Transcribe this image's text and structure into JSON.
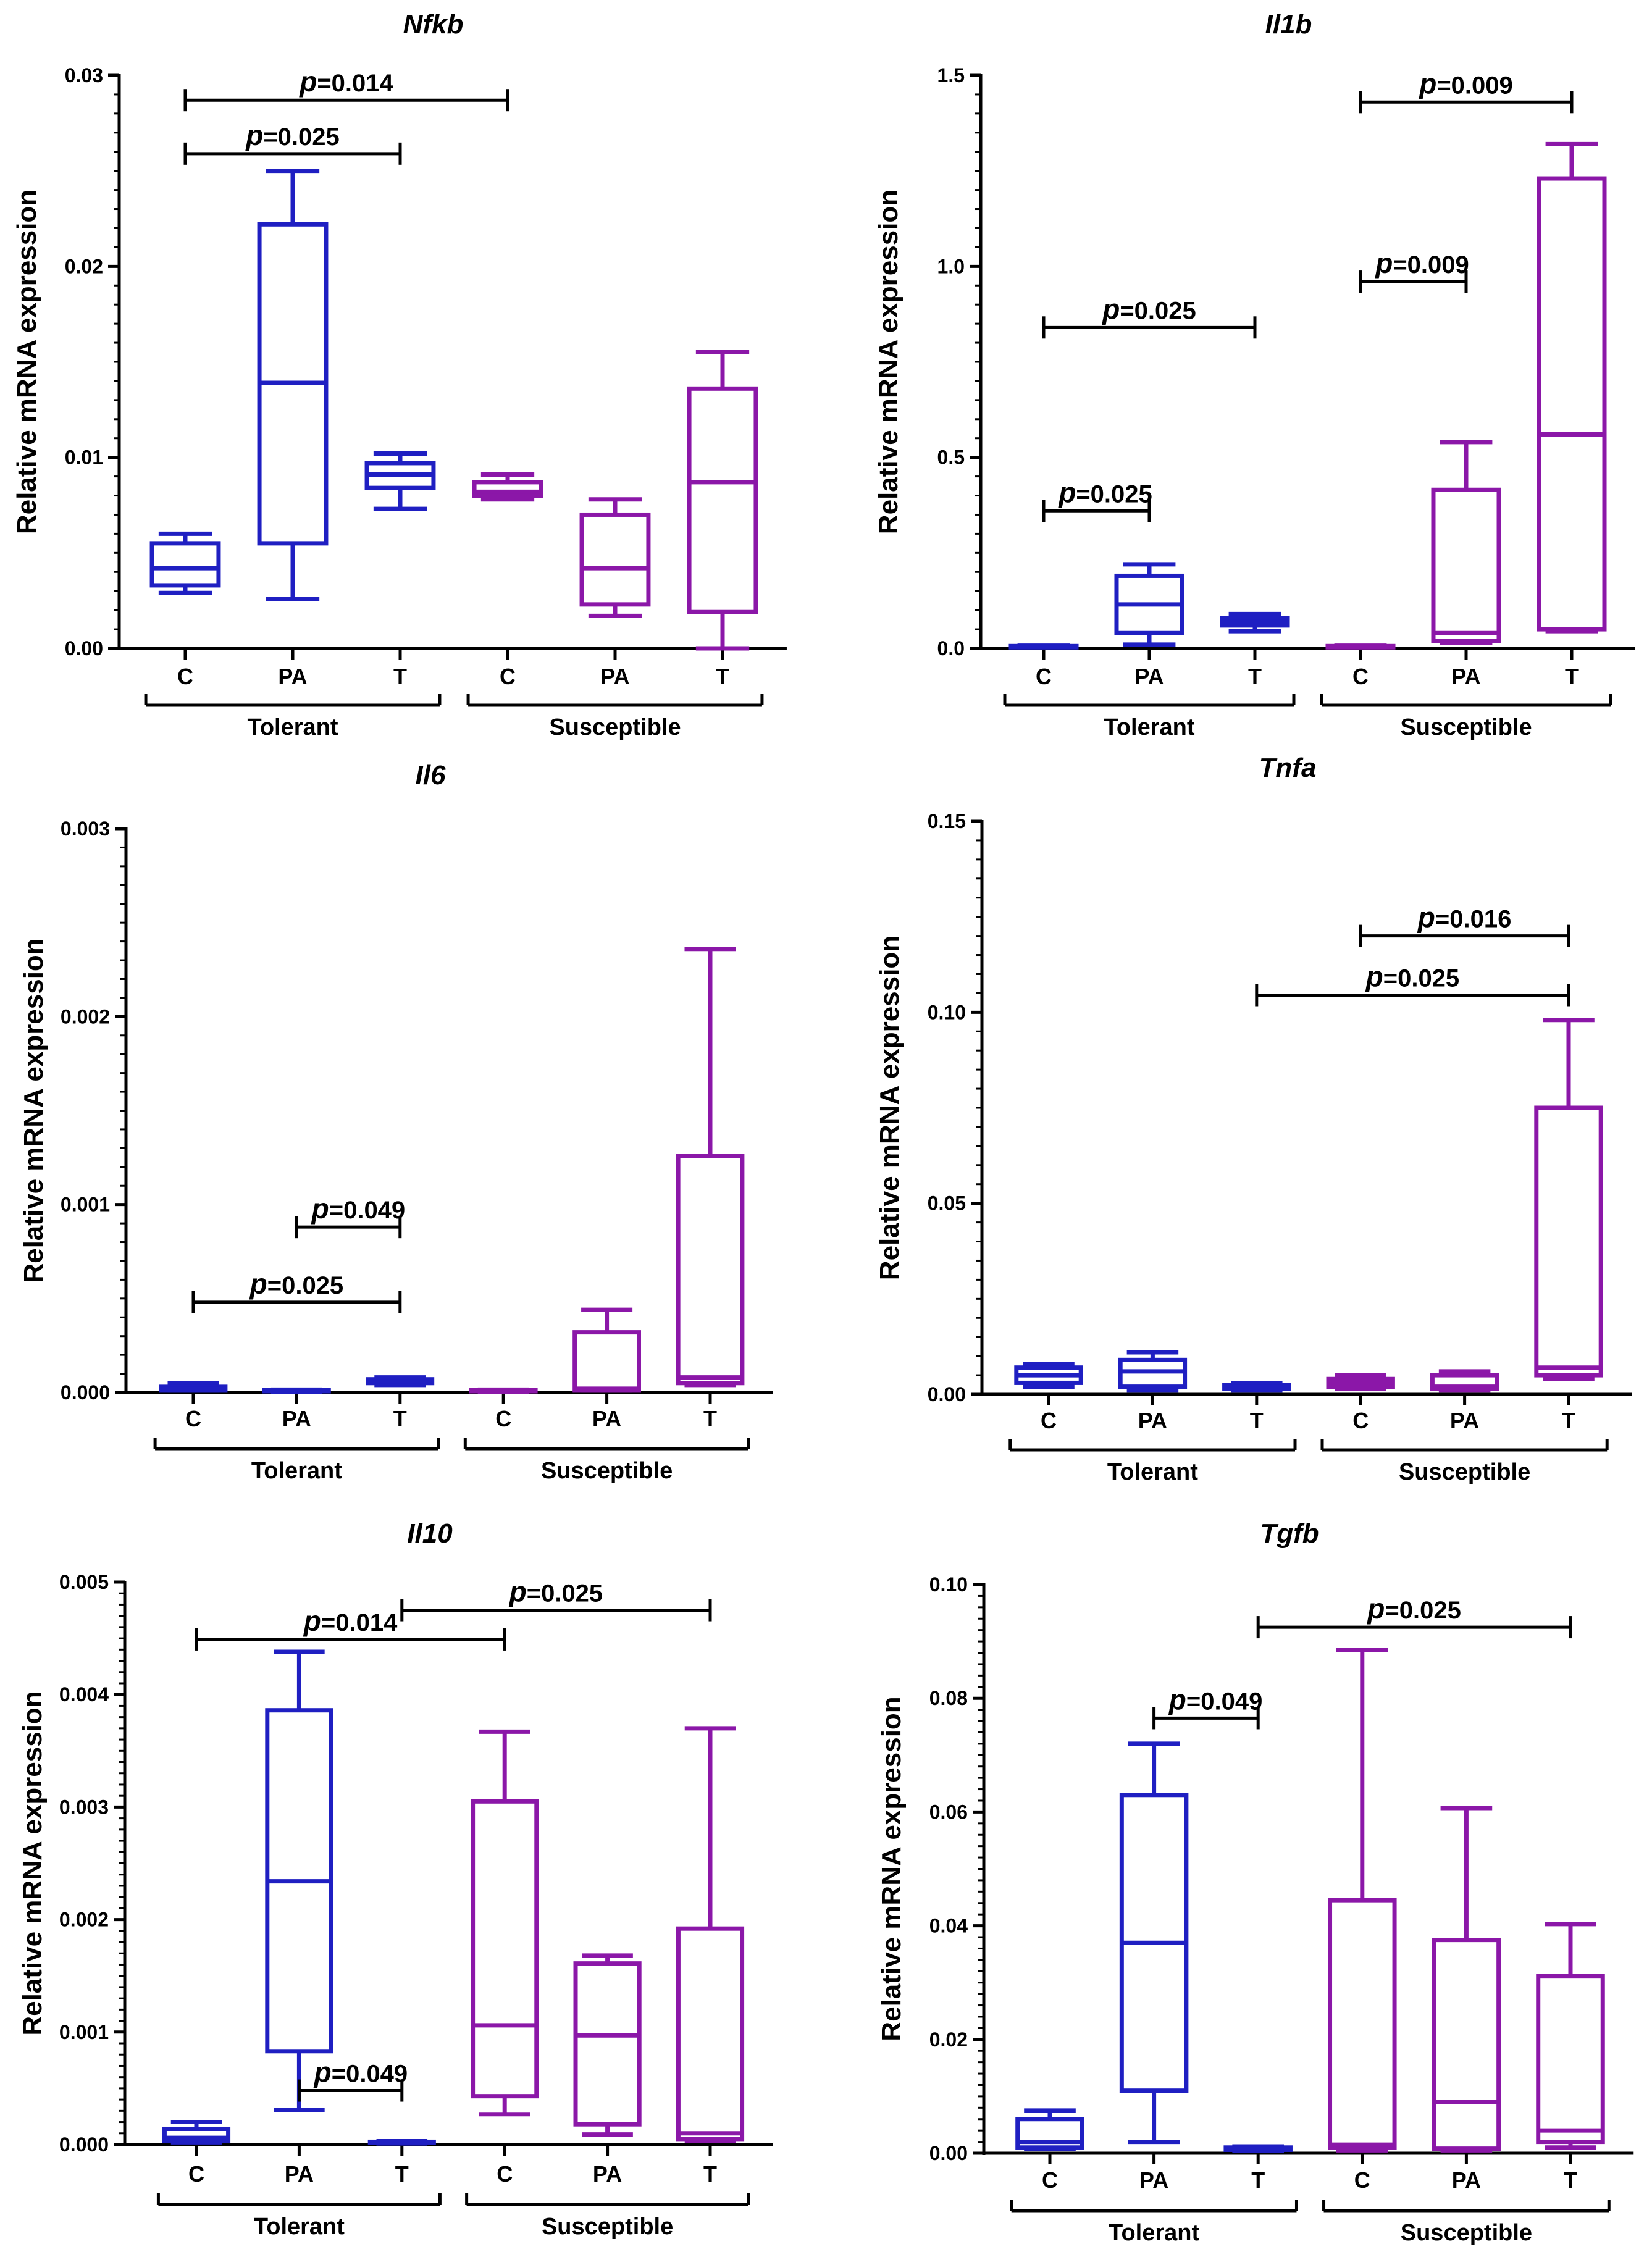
{
  "colors": {
    "tolerant": "#1f1fc2",
    "susceptible": "#8b17a8",
    "axis": "#000000"
  },
  "chart_data": [
    {
      "type": "box",
      "title": "Nfkb",
      "ylabel": "Relative mRNA expression",
      "ylim": [
        0,
        0.03
      ],
      "yticks": [
        0,
        0.01,
        0.02,
        0.03
      ],
      "ytick_labels": [
        "0.00",
        "0.01",
        "0.02",
        "0.03"
      ],
      "categories": [
        "C",
        "PA",
        "T",
        "C",
        "PA",
        "T"
      ],
      "groups": [
        {
          "name": "Tolerant",
          "from": 0,
          "to": 2
        },
        {
          "name": "Susceptible",
          "from": 3,
          "to": 5
        }
      ],
      "series": [
        {
          "name": "Tolerant C",
          "min": 0.0029,
          "q1": 0.0033,
          "median": 0.0042,
          "q3": 0.0055,
          "max": 0.006
        },
        {
          "name": "Tolerant PA",
          "min": 0.0026,
          "q1": 0.0055,
          "median": 0.0139,
          "q3": 0.0222,
          "max": 0.025
        },
        {
          "name": "Tolerant T",
          "min": 0.0073,
          "q1": 0.0084,
          "median": 0.0091,
          "q3": 0.0097,
          "max": 0.0102
        },
        {
          "name": "Susceptible C",
          "min": 0.0078,
          "q1": 0.008,
          "median": 0.0082,
          "q3": 0.0087,
          "max": 0.0091
        },
        {
          "name": "Susceptible PA",
          "min": 0.0017,
          "q1": 0.0023,
          "median": 0.0042,
          "q3": 0.007,
          "max": 0.0078
        },
        {
          "name": "Susceptible T",
          "min": 0.0,
          "q1": 0.0019,
          "median": 0.0087,
          "q3": 0.0136,
          "max": 0.0155
        }
      ],
      "annotations": [
        {
          "from": 0,
          "to": 2,
          "y": 0.0259,
          "prefix": "p",
          "label": "=0.025"
        },
        {
          "from": 0,
          "to": 3,
          "y": 0.0287,
          "prefix": "p",
          "label": "=0.014"
        }
      ]
    },
    {
      "type": "box",
      "title": "Il1b",
      "ylabel": "Relative mRNA expression",
      "ylim": [
        0,
        1.5
      ],
      "yticks": [
        0,
        0.5,
        1.0,
        1.5
      ],
      "ytick_labels": [
        "0.0",
        "0.5",
        "1.0",
        "1.5"
      ],
      "categories": [
        "C",
        "PA",
        "T",
        "C",
        "PA",
        "T"
      ],
      "groups": [
        {
          "name": "Tolerant",
          "from": 0,
          "to": 2
        },
        {
          "name": "Susceptible",
          "from": 3,
          "to": 5
        }
      ],
      "series": [
        {
          "name": "Tolerant C",
          "min": 0.003,
          "q1": 0.004,
          "median": 0.005,
          "q3": 0.006,
          "max": 0.007
        },
        {
          "name": "Tolerant PA",
          "min": 0.01,
          "q1": 0.04,
          "median": 0.115,
          "q3": 0.19,
          "max": 0.22
        },
        {
          "name": "Tolerant T",
          "min": 0.045,
          "q1": 0.06,
          "median": 0.07,
          "q3": 0.08,
          "max": 0.09
        },
        {
          "name": "Susceptible C",
          "min": 0.003,
          "q1": 0.004,
          "median": 0.005,
          "q3": 0.006,
          "max": 0.007
        },
        {
          "name": "Susceptible PA",
          "min": 0.015,
          "q1": 0.02,
          "median": 0.04,
          "q3": 0.415,
          "max": 0.54
        },
        {
          "name": "Susceptible T",
          "min": 0.045,
          "q1": 0.05,
          "median": 0.56,
          "q3": 1.23,
          "max": 1.32
        }
      ],
      "annotations": [
        {
          "from": 0,
          "to": 1,
          "y": 0.36,
          "prefix": "p",
          "label": "=0.025"
        },
        {
          "from": 0,
          "to": 2,
          "y": 0.84,
          "prefix": "p",
          "label": "=0.025"
        },
        {
          "from": 3,
          "to": 4,
          "y": 0.96,
          "prefix": "p",
          "label": "=0.009"
        },
        {
          "from": 3,
          "to": 5,
          "y": 1.43,
          "prefix": "p",
          "label": "=0.009"
        }
      ]
    },
    {
      "type": "box",
      "title": "Il6",
      "ylabel": "Relative mRNA expression",
      "ylim": [
        0,
        0.003
      ],
      "yticks": [
        0,
        0.001,
        0.002,
        0.003
      ],
      "ytick_labels": [
        "0.000",
        "0.001",
        "0.002",
        "0.003"
      ],
      "categories": [
        "C",
        "PA",
        "T",
        "C",
        "PA",
        "T"
      ],
      "groups": [
        {
          "name": "Tolerant",
          "from": 0,
          "to": 2
        },
        {
          "name": "Susceptible",
          "from": 3,
          "to": 5
        }
      ],
      "series": [
        {
          "name": "Tolerant C",
          "min": 1e-05,
          "q1": 1e-05,
          "median": 2e-05,
          "q3": 3e-05,
          "max": 5e-05
        },
        {
          "name": "Tolerant PA",
          "min": 5e-06,
          "q1": 7e-06,
          "median": 1e-05,
          "q3": 1.3e-05,
          "max": 1.5e-05
        },
        {
          "name": "Tolerant T",
          "min": 4e-05,
          "q1": 5e-05,
          "median": 6e-05,
          "q3": 7e-05,
          "max": 8e-05
        },
        {
          "name": "Susceptible C",
          "min": 5e-06,
          "q1": 7e-06,
          "median": 1e-05,
          "q3": 1.3e-05,
          "max": 1.5e-05
        },
        {
          "name": "Susceptible PA",
          "min": 1e-05,
          "q1": 1e-05,
          "median": 2e-05,
          "q3": 0.00032,
          "max": 0.00044
        },
        {
          "name": "Susceptible T",
          "min": 4e-05,
          "q1": 5e-05,
          "median": 8e-05,
          "q3": 0.00126,
          "max": 0.00236
        }
      ],
      "annotations": [
        {
          "from": 0,
          "to": 2,
          "y": 0.00048,
          "prefix": "p",
          "label": "=0.025"
        },
        {
          "from": 1,
          "to": 2,
          "y": 0.00088,
          "prefix": "p",
          "label": "=0.049"
        }
      ]
    },
    {
      "type": "box",
      "title": "Tnfa",
      "ylabel": "Relative mRNA expression",
      "ylim": [
        0,
        0.15
      ],
      "yticks": [
        0,
        0.05,
        0.1,
        0.15
      ],
      "ytick_labels": [
        "0.00",
        "0.05",
        "0.10",
        "0.15"
      ],
      "categories": [
        "C",
        "PA",
        "T",
        "C",
        "PA",
        "T"
      ],
      "groups": [
        {
          "name": "Tolerant",
          "from": 0,
          "to": 2
        },
        {
          "name": "Susceptible",
          "from": 3,
          "to": 5
        }
      ],
      "series": [
        {
          "name": "Tolerant C",
          "min": 0.002,
          "q1": 0.003,
          "median": 0.005,
          "q3": 0.007,
          "max": 0.008
        },
        {
          "name": "Tolerant PA",
          "min": 0.001,
          "q1": 0.002,
          "median": 0.006,
          "q3": 0.009,
          "max": 0.011
        },
        {
          "name": "Tolerant T",
          "min": 0.001,
          "q1": 0.0015,
          "median": 0.002,
          "q3": 0.0025,
          "max": 0.003
        },
        {
          "name": "Susceptible C",
          "min": 0.0015,
          "q1": 0.002,
          "median": 0.003,
          "q3": 0.004,
          "max": 0.005
        },
        {
          "name": "Susceptible PA",
          "min": 0.001,
          "q1": 0.0015,
          "median": 0.002,
          "q3": 0.005,
          "max": 0.006
        },
        {
          "name": "Susceptible T",
          "min": 0.004,
          "q1": 0.005,
          "median": 0.007,
          "q3": 0.075,
          "max": 0.098
        }
      ],
      "annotations": [
        {
          "from": 2,
          "to": 5,
          "y": 0.1045,
          "prefix": "p",
          "label": "=0.025"
        },
        {
          "from": 3,
          "to": 5,
          "y": 0.12,
          "prefix": "p",
          "label": "=0.016"
        }
      ]
    },
    {
      "type": "box",
      "title": "Il10",
      "ylabel": "Relative mRNA expression",
      "ylim": [
        0,
        0.005
      ],
      "yticks": [
        0,
        0.001,
        0.002,
        0.003,
        0.004,
        0.005
      ],
      "ytick_labels": [
        "0.000",
        "0.001",
        "0.002",
        "0.003",
        "0.004",
        "0.005"
      ],
      "categories": [
        "C",
        "PA",
        "T",
        "C",
        "PA",
        "T"
      ],
      "groups": [
        {
          "name": "Tolerant",
          "from": 0,
          "to": 2
        },
        {
          "name": "Susceptible",
          "from": 3,
          "to": 5
        }
      ],
      "series": [
        {
          "name": "Tolerant C",
          "min": 2e-05,
          "q1": 3e-05,
          "median": 6e-05,
          "q3": 0.00014,
          "max": 0.0002
        },
        {
          "name": "Tolerant PA",
          "min": 0.00031,
          "q1": 0.00083,
          "median": 0.00234,
          "q3": 0.00386,
          "max": 0.00438
        },
        {
          "name": "Tolerant T",
          "min": 1e-05,
          "q1": 1.5e-05,
          "median": 2e-05,
          "q3": 2.5e-05,
          "max": 3e-05
        },
        {
          "name": "Susceptible C",
          "min": 0.00027,
          "q1": 0.00043,
          "median": 0.00106,
          "q3": 0.00305,
          "max": 0.00367
        },
        {
          "name": "Susceptible PA",
          "min": 9e-05,
          "q1": 0.00018,
          "median": 0.00097,
          "q3": 0.00161,
          "max": 0.00168
        },
        {
          "name": "Susceptible T",
          "min": 3e-05,
          "q1": 5e-05,
          "median": 0.0001,
          "q3": 0.00192,
          "max": 0.0037
        }
      ],
      "annotations": [
        {
          "from": 1,
          "to": 2,
          "y": 0.00048,
          "prefix": "p",
          "label": "=0.049"
        },
        {
          "from": 0,
          "to": 3,
          "y": 0.00449,
          "prefix": "p",
          "label": "=0.014"
        },
        {
          "from": 2,
          "to": 5,
          "y": 0.00475,
          "prefix": "p",
          "label": "=0.025"
        }
      ]
    },
    {
      "type": "box",
      "title": "Tgfb",
      "ylabel": "Relative mRNA expression",
      "ylim": [
        0,
        0.1
      ],
      "yticks": [
        0,
        0.02,
        0.04,
        0.06,
        0.08,
        0.1
      ],
      "ytick_labels": [
        "0.00",
        "0.02",
        "0.04",
        "0.06",
        "0.08",
        "0.10"
      ],
      "categories": [
        "C",
        "PA",
        "T",
        "C",
        "PA",
        "T"
      ],
      "groups": [
        {
          "name": "Tolerant",
          "from": 0,
          "to": 2
        },
        {
          "name": "Susceptible",
          "from": 3,
          "to": 5
        }
      ],
      "series": [
        {
          "name": "Tolerant C",
          "min": 0.0008,
          "q1": 0.001,
          "median": 0.002,
          "q3": 0.006,
          "max": 0.0075
        },
        {
          "name": "Tolerant PA",
          "min": 0.002,
          "q1": 0.011,
          "median": 0.037,
          "q3": 0.063,
          "max": 0.072
        },
        {
          "name": "Tolerant T",
          "min": 0.0004,
          "q1": 0.0006,
          "median": 0.0008,
          "q3": 0.001,
          "max": 0.0012
        },
        {
          "name": "Susceptible C",
          "min": 0.0005,
          "q1": 0.001,
          "median": 0.0015,
          "q3": 0.0445,
          "max": 0.0885
        },
        {
          "name": "Susceptible PA",
          "min": 0.0005,
          "q1": 0.0008,
          "median": 0.009,
          "q3": 0.0375,
          "max": 0.0607
        },
        {
          "name": "Susceptible T",
          "min": 0.001,
          "q1": 0.002,
          "median": 0.004,
          "q3": 0.0312,
          "max": 0.0403
        }
      ],
      "annotations": [
        {
          "from": 1,
          "to": 2,
          "y": 0.0765,
          "prefix": "p",
          "label": "=0.049"
        },
        {
          "from": 2,
          "to": 5,
          "y": 0.0925,
          "prefix": "p",
          "label": "=0.025"
        }
      ]
    }
  ]
}
